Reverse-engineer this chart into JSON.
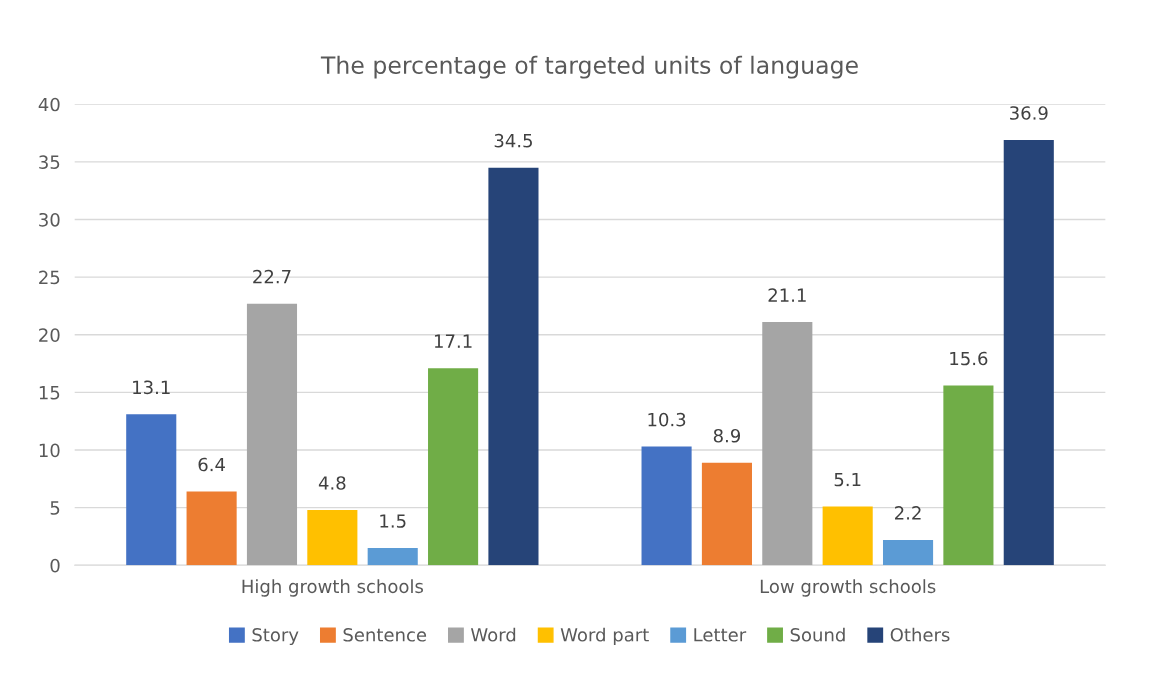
{
  "chart_data": {
    "type": "bar",
    "title": "The percentage of targeted units of language",
    "categories": [
      "High growth schools",
      "Low growth schools"
    ],
    "series": [
      {
        "name": "Story",
        "color": "#4472c4",
        "values": [
          13.1,
          10.3
        ]
      },
      {
        "name": "Sentence",
        "color": "#ed7d31",
        "values": [
          6.4,
          8.9
        ]
      },
      {
        "name": "Word",
        "color": "#a5a5a5",
        "values": [
          22.7,
          21.1
        ]
      },
      {
        "name": "Word part",
        "color": "#ffc000",
        "values": [
          4.8,
          5.1
        ]
      },
      {
        "name": "Letter",
        "color": "#5b9bd5",
        "values": [
          1.5,
          2.2
        ]
      },
      {
        "name": "Sound",
        "color": "#70ad47",
        "values": [
          17.1,
          15.6
        ]
      },
      {
        "name": "Others",
        "color": "#264478",
        "values": [
          34.5,
          36.9
        ]
      }
    ],
    "ylim": [
      0,
      40
    ],
    "yticks": [
      0,
      5,
      10,
      15,
      20,
      25,
      30,
      35,
      40
    ],
    "grid": "y",
    "legend": "bottom",
    "data_labels": true
  }
}
